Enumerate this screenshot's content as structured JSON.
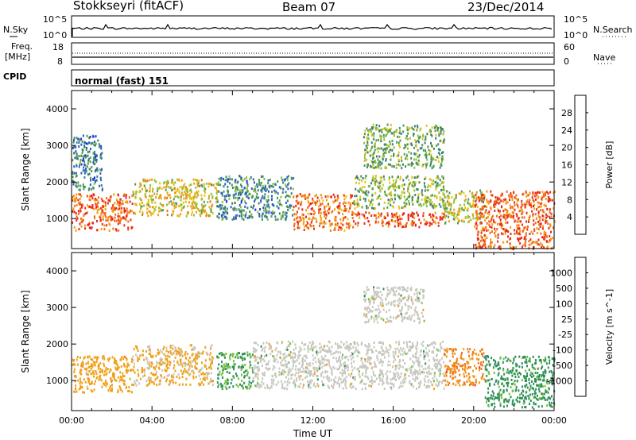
{
  "header": {
    "station": "Stokkseyri (fitACF)",
    "beam": "Beam 07",
    "date": "23/Dec/2014"
  },
  "strip_labels": {
    "nsky": "N.Sky",
    "nsky_ticks": [
      "10^5",
      "10^0"
    ],
    "nsearch": "N.Search",
    "nsearch_ticks": [
      "10^5",
      "10^0"
    ],
    "freq": "Freq.",
    "freq_unit": "[MHz]",
    "freq_ticks": [
      "18",
      "8"
    ],
    "nave": "Nave",
    "nave_ticks": [
      "60",
      "0"
    ],
    "cpid": "CPID",
    "cpid_value": "normal (fast) 151"
  },
  "colors": {
    "power_scale": [
      "#1f2fd6",
      "#2a5cc8",
      "#3a7f7a",
      "#4c9a55",
      "#8fbf3a",
      "#e6c21a",
      "#f39a12",
      "#f0691a",
      "#e8281a"
    ],
    "velocity_scale": [
      "#1d4fc0",
      "#2f7fb8",
      "#2f8f5c",
      "#70c23a",
      "#c8c8c0",
      "#c8c8c0",
      "#f0a018",
      "#f07818",
      "#f04018",
      "#e01010"
    ]
  },
  "chart_data": [
    {
      "type": "heatmap",
      "name": "power",
      "ylabel": "Slant Range [km]",
      "xlabel": "",
      "x_ticks": [
        "00:00",
        "04:00",
        "08:00",
        "12:00",
        "16:00",
        "20:00",
        "00:00"
      ],
      "xlim": [
        0,
        24
      ],
      "y_ticks": [
        "1000",
        "2000",
        "3000",
        "4000"
      ],
      "ylim": [
        180,
        4500
      ],
      "colorbar_label": "Power [dB]",
      "colorbar_ticks": [
        "4",
        "8",
        "12",
        "16",
        "20",
        "24",
        "28"
      ],
      "colorbar_range": [
        0,
        30
      ],
      "patches": [
        {
          "x": [
            0.0,
            3.0
          ],
          "y": [
            700,
            1700
          ],
          "v": 26
        },
        {
          "x": [
            3.0,
            7.2
          ],
          "y": [
            1100,
            2100
          ],
          "v": 18
        },
        {
          "x": [
            7.2,
            11.0
          ],
          "y": [
            1000,
            2200
          ],
          "v": 9
        },
        {
          "x": [
            11.0,
            14.0
          ],
          "y": [
            700,
            1700
          ],
          "v": 25
        },
        {
          "x": [
            14.0,
            18.5
          ],
          "y": [
            800,
            1200
          ],
          "v": 27
        },
        {
          "x": [
            14.0,
            18.5
          ],
          "y": [
            1300,
            2200
          ],
          "v": 14
        },
        {
          "x": [
            18.5,
            20.5
          ],
          "y": [
            900,
            1800
          ],
          "v": 16
        },
        {
          "x": [
            20.0,
            24.0
          ],
          "y": [
            200,
            1800
          ],
          "v": 26
        },
        {
          "x": [
            0.0,
            1.5
          ],
          "y": [
            1800,
            3300
          ],
          "v": 8
        },
        {
          "x": [
            14.5,
            18.5
          ],
          "y": [
            2400,
            3600
          ],
          "v": 13
        }
      ]
    },
    {
      "type": "heatmap",
      "name": "velocity",
      "ylabel": "Slant Range [km]",
      "xlabel": "Time UT",
      "x_ticks": [
        "00:00",
        "04:00",
        "08:00",
        "12:00",
        "16:00",
        "20:00",
        "00:00"
      ],
      "xlim": [
        0,
        24
      ],
      "y_ticks": [
        "1000",
        "2000",
        "3000",
        "4000"
      ],
      "ylim": [
        180,
        4500
      ],
      "colorbar_label": "Velocity [m s^-1]",
      "colorbar_ticks": [
        "1000",
        "500",
        "100",
        "25",
        "-25",
        "-100",
        "-500",
        "-1000"
      ],
      "patches": [
        {
          "x": [
            0.0,
            3.0
          ],
          "y": [
            700,
            1700
          ],
          "v": -300
        },
        {
          "x": [
            3.0,
            7.0
          ],
          "y": [
            900,
            2000
          ],
          "v": -150
        },
        {
          "x": [
            7.2,
            9.0
          ],
          "y": [
            800,
            1800
          ],
          "v": 120
        },
        {
          "x": [
            9.0,
            18.5
          ],
          "y": [
            800,
            2100
          ],
          "v": 0
        },
        {
          "x": [
            18.5,
            20.5
          ],
          "y": [
            900,
            1900
          ],
          "v": -600
        },
        {
          "x": [
            20.5,
            24.0
          ],
          "y": [
            300,
            1700
          ],
          "v": 200
        },
        {
          "x": [
            14.5,
            17.5
          ],
          "y": [
            2600,
            3600
          ],
          "v": 0
        }
      ]
    }
  ]
}
